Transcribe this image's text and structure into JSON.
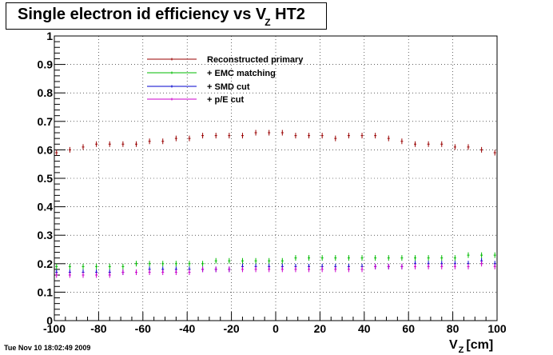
{
  "title": {
    "main": "Single electron id efficiency vs V",
    "sub": "Z",
    "suffix": " HT2"
  },
  "footer": "Tue Nov 10 18:02:49 2009",
  "xlabel": {
    "main": "V",
    "sub": "Z",
    "unit": "[cm]"
  },
  "colors": {
    "red": "#990000",
    "green": "#00bb00",
    "blue": "#0000cc",
    "magenta": "#cc00cc"
  },
  "chart_data": {
    "type": "scatter",
    "title": "Single electron id efficiency vs VZ HT2",
    "xlabel": "VZ [cm]",
    "ylabel": "",
    "xlim": [
      -100,
      100
    ],
    "ylim": [
      0,
      1
    ],
    "xticks": [
      -100,
      -80,
      -60,
      -40,
      -20,
      0,
      20,
      40,
      60,
      80,
      100
    ],
    "yticks": [
      0,
      0.1,
      0.2,
      0.3,
      0.4,
      0.5,
      0.6,
      0.7,
      0.8,
      0.9,
      1
    ],
    "ytick_labels": [
      "0",
      "0.1",
      "0.2",
      "0.3",
      "0.4",
      "0.5",
      "0.6",
      "0.7",
      "0.8",
      "0.9",
      "1"
    ],
    "grid": true,
    "legend_position": "top-center",
    "x": [
      -99,
      -93,
      -87,
      -81,
      -75,
      -69,
      -63,
      -57,
      -51,
      -45,
      -39,
      -33,
      -27,
      -21,
      -15,
      -9,
      -3,
      3,
      9,
      15,
      21,
      27,
      33,
      39,
      45,
      51,
      57,
      63,
      69,
      75,
      81,
      87,
      93,
      99
    ],
    "series": [
      {
        "name": "Reconstructed primary",
        "color": "#990000",
        "values": [
          0.59,
          0.6,
          0.61,
          0.62,
          0.62,
          0.62,
          0.62,
          0.63,
          0.63,
          0.64,
          0.64,
          0.65,
          0.65,
          0.65,
          0.65,
          0.66,
          0.66,
          0.66,
          0.65,
          0.65,
          0.65,
          0.64,
          0.65,
          0.65,
          0.65,
          0.64,
          0.63,
          0.62,
          0.62,
          0.62,
          0.61,
          0.61,
          0.6,
          0.59
        ]
      },
      {
        "name": "+ EMC matching",
        "color": "#00bb00",
        "values": [
          0.19,
          0.19,
          0.19,
          0.19,
          0.19,
          0.19,
          0.2,
          0.2,
          0.2,
          0.2,
          0.2,
          0.2,
          0.21,
          0.21,
          0.21,
          0.21,
          0.21,
          0.21,
          0.22,
          0.22,
          0.22,
          0.22,
          0.22,
          0.22,
          0.22,
          0.22,
          0.22,
          0.22,
          0.22,
          0.22,
          0.22,
          0.23,
          0.23,
          0.23
        ]
      },
      {
        "name": "+ SMD cut",
        "color": "#0000cc",
        "values": [
          0.17,
          0.17,
          0.17,
          0.17,
          0.17,
          0.17,
          0.17,
          0.18,
          0.18,
          0.18,
          0.18,
          0.18,
          0.18,
          0.18,
          0.19,
          0.19,
          0.19,
          0.19,
          0.19,
          0.19,
          0.19,
          0.19,
          0.19,
          0.19,
          0.19,
          0.19,
          0.19,
          0.2,
          0.2,
          0.2,
          0.2,
          0.2,
          0.21,
          0.2
        ]
      },
      {
        "name": "+ p/E cut",
        "color": "#cc00cc",
        "values": [
          0.16,
          0.16,
          0.16,
          0.16,
          0.16,
          0.17,
          0.17,
          0.17,
          0.17,
          0.17,
          0.17,
          0.18,
          0.18,
          0.18,
          0.18,
          0.18,
          0.18,
          0.18,
          0.18,
          0.18,
          0.18,
          0.18,
          0.18,
          0.18,
          0.19,
          0.19,
          0.19,
          0.19,
          0.19,
          0.19,
          0.19,
          0.19,
          0.2,
          0.19
        ]
      }
    ]
  }
}
